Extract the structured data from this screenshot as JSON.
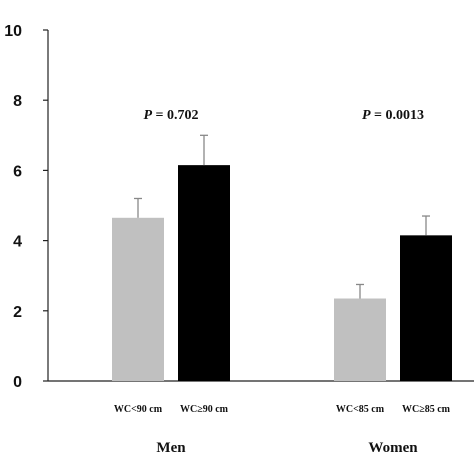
{
  "chart_data": {
    "type": "bar",
    "title": "",
    "xlabel": "",
    "ylabel": "",
    "ylim": [
      0,
      10
    ],
    "yticks": [
      "0",
      "2",
      "4",
      "6",
      "8",
      "10"
    ],
    "grid": false,
    "groups": [
      {
        "name": "Men",
        "p_label": "P",
        "p_value": "= 0.702",
        "bars": [
          {
            "label": "WC<90 cm",
            "value": 4.65,
            "error": 0.55,
            "color": "#c0c0c0"
          },
          {
            "label": "WC≥90 cm",
            "value": 6.15,
            "error": 0.85,
            "color": "#000000"
          }
        ]
      },
      {
        "name": "Women",
        "p_label": "P",
        "p_value": "= 0.0013",
        "bars": [
          {
            "label": "WC<85 cm",
            "value": 2.35,
            "error": 0.4,
            "color": "#c0c0c0"
          },
          {
            "label": "WC≥85 cm",
            "value": 4.15,
            "error": 0.55,
            "color": "#000000"
          }
        ]
      }
    ]
  }
}
